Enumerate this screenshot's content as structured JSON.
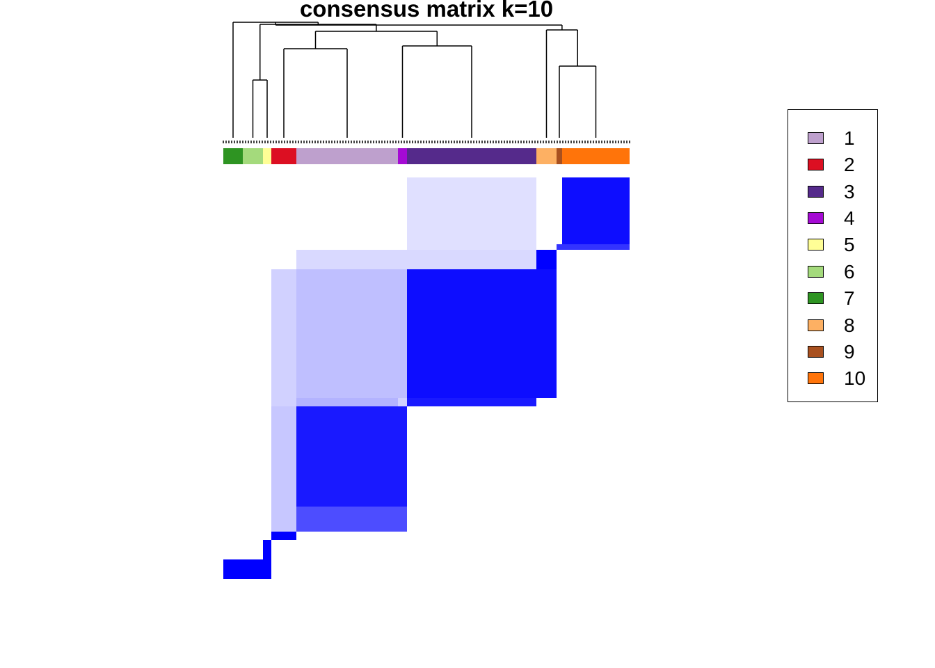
{
  "chart_data": {
    "type": "heatmap",
    "title": "consensus matrix k=10",
    "colors": {
      "high": "#0000ff",
      "low": "#ffffff"
    },
    "annotation_order": [
      7,
      6,
      5,
      2,
      1,
      4,
      3,
      8,
      9,
      10
    ],
    "annotation_counts": [
      7,
      7,
      3,
      9,
      36,
      3,
      46,
      7,
      2,
      24
    ],
    "legend": {
      "position": "right",
      "items": [
        {
          "label": "1",
          "color": "#bea0cd"
        },
        {
          "label": "2",
          "color": "#dc0f22"
        },
        {
          "label": "3",
          "color": "#552a8b"
        },
        {
          "label": "4",
          "color": "#a50ad4"
        },
        {
          "label": "5",
          "color": "#fffe96"
        },
        {
          "label": "6",
          "color": "#a4da7c"
        },
        {
          "label": "7",
          "color": "#2e9422"
        },
        {
          "label": "8",
          "color": "#fdb063"
        },
        {
          "label": "9",
          "color": "#a8501f"
        },
        {
          "label": "10",
          "color": "#ff740a"
        }
      ]
    },
    "matrix_blocks": [
      {
        "rows": [
          10,
          10
        ],
        "cols": [
          0,
          2
        ],
        "value": 1.0
      },
      {
        "rows": [
          9,
          9
        ],
        "cols": [
          1,
          1
        ],
        "value": 1.0
      },
      {
        "rows": [
          8,
          8
        ],
        "cols": [
          2,
          2
        ],
        "value": 1.0
      },
      {
        "rows": [
          7,
          7
        ],
        "cols": [
          3,
          3
        ],
        "value": 1.0
      },
      {
        "rows": [
          6,
          6
        ],
        "cols": [
          4,
          5
        ],
        "value": 0.7
      },
      {
        "rows": [
          5,
          5
        ],
        "cols": [
          4,
          5
        ],
        "value": 0.9
      },
      {
        "rows": [
          4,
          4
        ],
        "cols": [
          6,
          6
        ],
        "value": 0.9
      },
      {
        "rows": [
          3,
          3
        ],
        "cols": [
          6,
          7
        ],
        "value": 0.95
      },
      {
        "rows": [
          2,
          2
        ],
        "cols": [
          7,
          7
        ],
        "value": 1.0
      },
      {
        "rows": [
          1,
          1
        ],
        "cols": [
          8,
          9
        ],
        "value": 0.8
      },
      {
        "rows": [
          0,
          0
        ],
        "cols": [
          9,
          9
        ],
        "value": 0.95
      }
    ]
  },
  "legend_labels": [
    "1",
    "2",
    "3",
    "4",
    "5",
    "6",
    "7",
    "8",
    "9",
    "10"
  ]
}
